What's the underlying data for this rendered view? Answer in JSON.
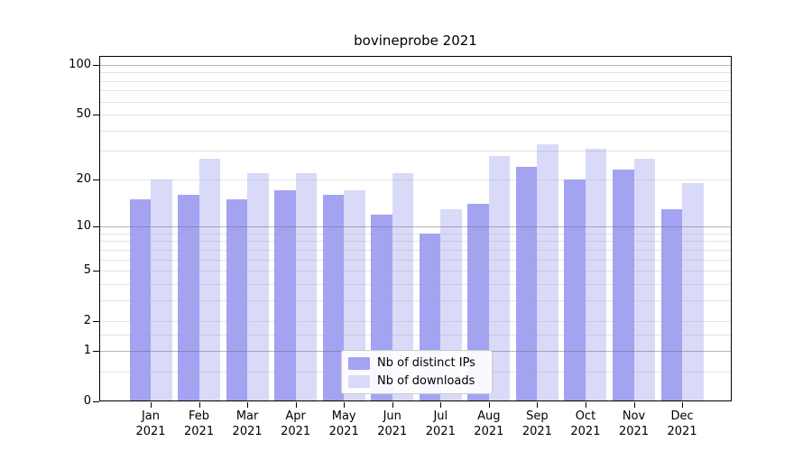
{
  "title": "bovineprobe 2021",
  "legend": {
    "items": [
      {
        "label": "Nb of distinct IPs",
        "color": "#a3a3f2"
      },
      {
        "label": "Nb of downloads",
        "color": "#d9d9f8"
      }
    ]
  },
  "chart_data": {
    "type": "bar",
    "title": "bovineprobe 2021",
    "xlabel": "",
    "ylabel": "",
    "scale": "log1p",
    "ylim": [
      0,
      113
    ],
    "yticks": [
      0,
      1,
      2,
      5,
      10,
      20,
      50,
      100
    ],
    "grid": {
      "major": [
        1,
        10,
        100
      ],
      "minor": [
        0.5,
        1.5,
        2,
        3,
        4,
        5,
        6,
        7,
        8,
        9,
        20,
        30,
        40,
        50,
        60,
        70,
        80,
        90
      ]
    },
    "legend_position": "lower center",
    "categories": [
      "Jan 2021",
      "Feb 2021",
      "Mar 2021",
      "Apr 2021",
      "May 2021",
      "Jun 2021",
      "Jul 2021",
      "Aug 2021",
      "Sep 2021",
      "Oct 2021",
      "Nov 2021",
      "Dec 2021"
    ],
    "series": [
      {
        "name": "Nb of distinct IPs",
        "color": "#a3a3f2",
        "values": [
          15,
          16,
          15,
          17,
          16,
          12,
          9,
          14,
          24,
          20,
          23,
          13
        ]
      },
      {
        "name": "Nb of downloads",
        "color": "#d9d9f8",
        "values": [
          20,
          27,
          22,
          22,
          17,
          22,
          13,
          28,
          33,
          31,
          27,
          19
        ]
      }
    ]
  },
  "colors": {
    "background": "#ffffff",
    "axis": "#000000",
    "grid_major": "rgba(110,110,110,0.5)",
    "grid_minor": "rgba(165,165,165,0.3)",
    "text": "#000000"
  }
}
